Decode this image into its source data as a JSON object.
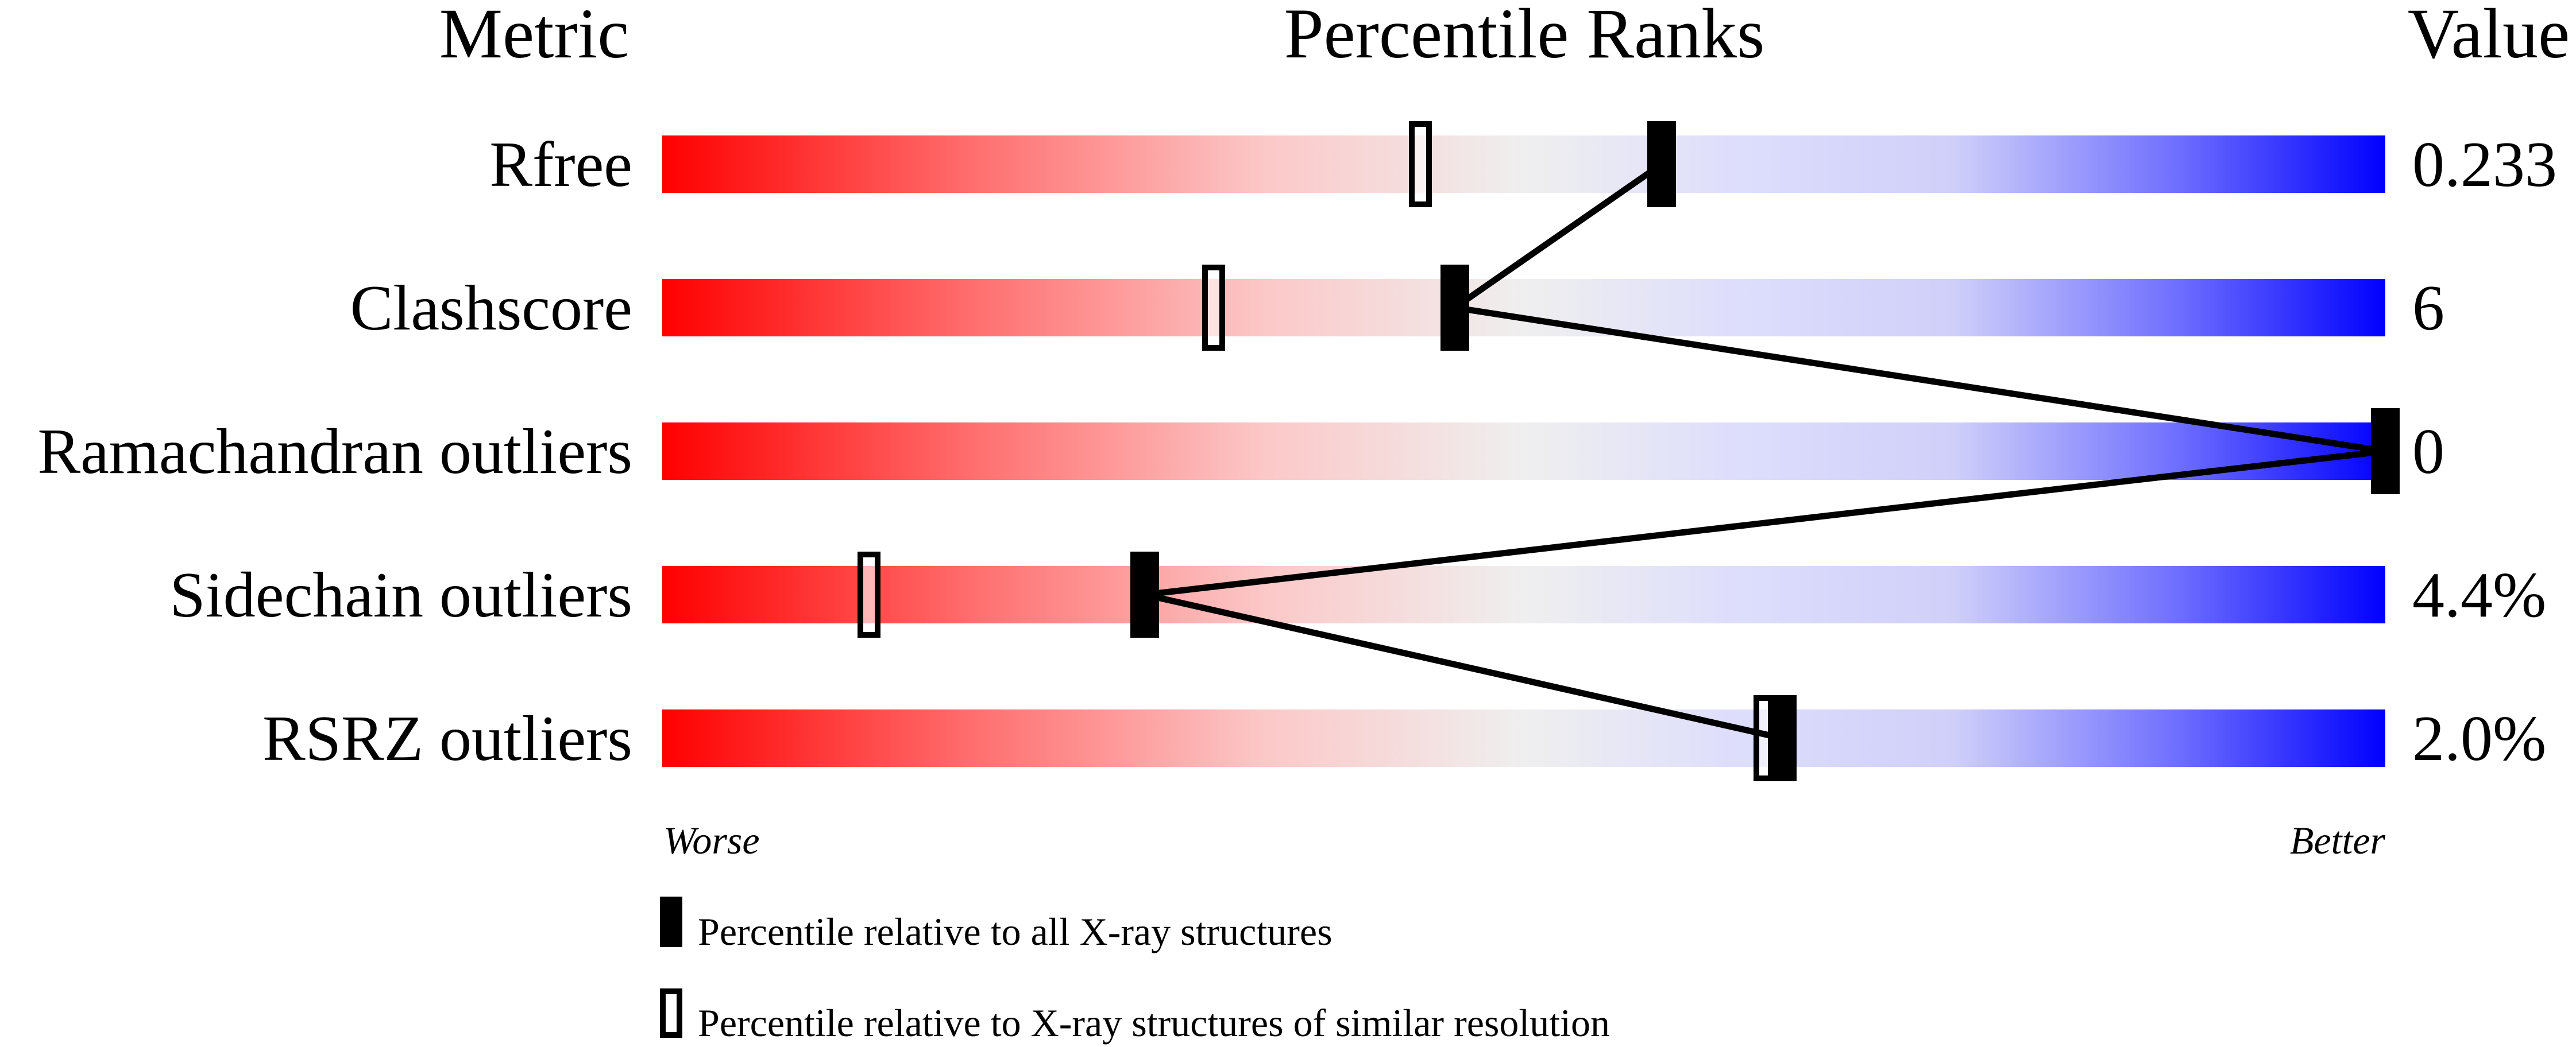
{
  "chart_data": {
    "type": "bar",
    "subtype": "percentile-ranks",
    "headers": {
      "metric": "Metric",
      "percentile": "Percentile Ranks",
      "value": "Value"
    },
    "xlim": [
      0,
      100
    ],
    "axis_labels": {
      "left": "Worse",
      "right": "Better"
    },
    "gradient_colors": [
      "#ff0000",
      "#efefef",
      "#0000ff"
    ],
    "rows": [
      {
        "metric": "Rfree",
        "value": "0.233",
        "percentile_all": 58,
        "percentile_similar": 44
      },
      {
        "metric": "Clashscore",
        "value": "6",
        "percentile_all": 46,
        "percentile_similar": 32
      },
      {
        "metric": "Ramachandran outliers",
        "value": "0",
        "percentile_all": 100,
        "percentile_similar": 100
      },
      {
        "metric": "Sidechain outliers",
        "value": "4.4%",
        "percentile_all": 28,
        "percentile_similar": 12
      },
      {
        "metric": "RSRZ outliers",
        "value": "2.0%",
        "percentile_all": 65,
        "percentile_similar": 64
      }
    ],
    "legend": [
      {
        "marker": "filled",
        "label": "Percentile relative to all X-ray structures"
      },
      {
        "marker": "open",
        "label": "Percentile relative to X-ray structures of similar resolution"
      }
    ]
  }
}
